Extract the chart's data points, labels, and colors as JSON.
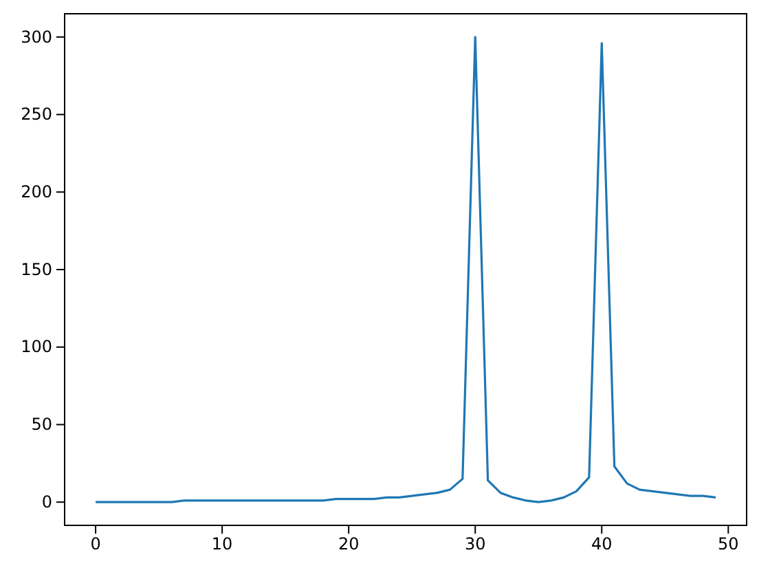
{
  "chart_data": {
    "type": "line",
    "x": [
      0,
      1,
      2,
      3,
      4,
      5,
      6,
      7,
      8,
      9,
      10,
      11,
      12,
      13,
      14,
      15,
      16,
      17,
      18,
      19,
      20,
      21,
      22,
      23,
      24,
      25,
      26,
      27,
      28,
      29,
      30,
      31,
      32,
      33,
      34,
      35,
      36,
      37,
      38,
      39,
      40,
      41,
      42,
      43,
      44,
      45,
      46,
      47,
      48,
      49
    ],
    "series": [
      {
        "color": "#1f77b4",
        "values": [
          0,
          0,
          0,
          0,
          0,
          0,
          0,
          1,
          1,
          1,
          1,
          1,
          1,
          1,
          1,
          1,
          1,
          1,
          1,
          2,
          2,
          2,
          2,
          3,
          3,
          4,
          5,
          6,
          8,
          15,
          300,
          14,
          6,
          3,
          1,
          0,
          1,
          3,
          7,
          16,
          296,
          23,
          12,
          8,
          7,
          6,
          5,
          4,
          4,
          3
        ]
      }
    ],
    "xlim": [
      -2.45,
      51.45
    ],
    "xticks": [
      0,
      10,
      20,
      30,
      40,
      50
    ],
    "ylim": [
      -15,
      315
    ],
    "yticks": [
      0,
      50,
      100,
      150,
      200,
      250,
      300
    ],
    "grid": false,
    "marker": "none",
    "line_style": "solid"
  }
}
